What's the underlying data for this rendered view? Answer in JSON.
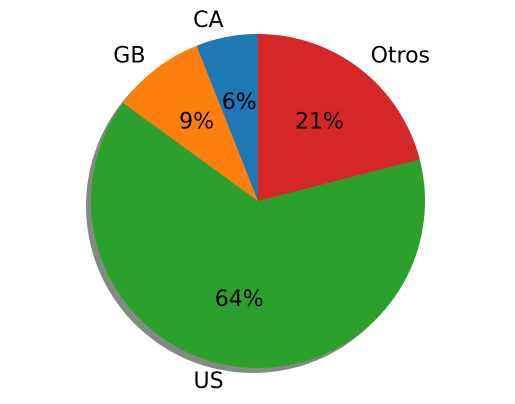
{
  "chart_data": {
    "type": "pie",
    "categories": [
      "CA",
      "GB",
      "US",
      "Otros"
    ],
    "values": [
      6,
      9,
      64,
      21
    ],
    "pct_labels": [
      "6%",
      "9%",
      "64%",
      "21%"
    ],
    "colors": [
      "#1f77b4",
      "#ff7f0e",
      "#2ca02c",
      "#d62728"
    ],
    "start_angle_deg": 90,
    "direction": "counterclockwise",
    "shadow": true,
    "shadow_color": "#7f8c7f"
  }
}
